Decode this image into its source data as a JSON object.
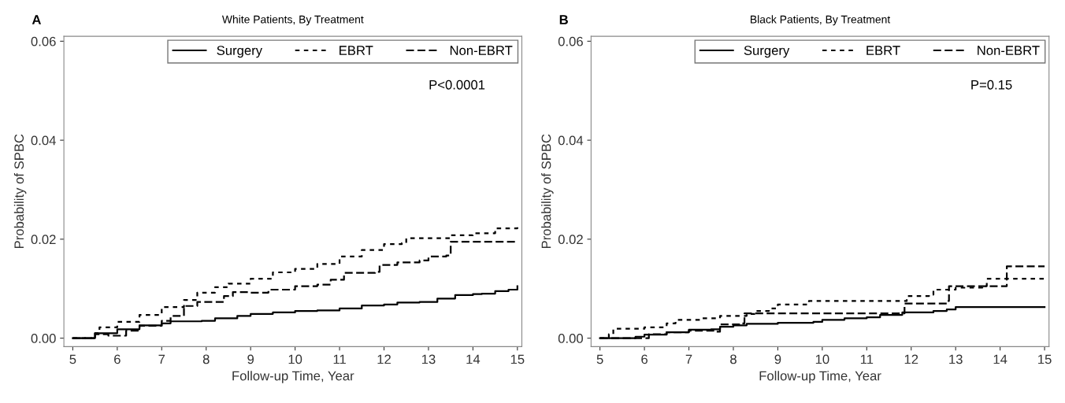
{
  "chart_data": [
    {
      "type": "step",
      "title": "White Patients, By Treatment",
      "xlabel": "Follow-up Time, Year",
      "ylabel": "Probability of SPBC",
      "xlim": [
        4.8,
        15.1
      ],
      "ylim": [
        -0.0017,
        0.061
      ],
      "xticks": [
        5,
        6,
        7,
        8,
        9,
        10,
        11,
        12,
        13,
        14,
        15
      ],
      "yticks": [
        {
          "value": 0,
          "label": "0.00"
        },
        {
          "value": 0.02,
          "label": "0.02"
        },
        {
          "value": 0.04,
          "label": "0.04"
        },
        {
          "value": 0.06,
          "label": "0.06"
        }
      ],
      "grid": false,
      "legend": "top right",
      "annotations": [
        "A",
        "P<0.0001"
      ],
      "series": [
        {
          "name": "Surgery",
          "color": "#000000",
          "line_style": "solid",
          "x": [
            5,
            5.5,
            6,
            6.5,
            7,
            7.2,
            7.9,
            8.2,
            8.7,
            9,
            9.5,
            10,
            10.5,
            11,
            11.5,
            12,
            12.3,
            12.8,
            13.2,
            13.6,
            14,
            14.2,
            14.5,
            14.8,
            15
          ],
          "values": [
            0,
            0.001,
            0.0018,
            0.0026,
            0.003,
            0.0034,
            0.0035,
            0.004,
            0.0045,
            0.0049,
            0.0052,
            0.0055,
            0.0056,
            0.006,
            0.0066,
            0.0068,
            0.0072,
            0.0073,
            0.008,
            0.0087,
            0.0089,
            0.009,
            0.0095,
            0.0098,
            0.0105
          ]
        },
        {
          "name": "EBRT",
          "color": "#000000",
          "line_style": "dotted",
          "x": [
            5,
            5.5,
            5.6,
            6,
            6.5,
            7,
            7.5,
            7.8,
            8.2,
            8.5,
            9,
            9.5,
            10,
            10.5,
            11,
            11.5,
            12,
            12.4,
            12.5,
            13,
            13.5,
            14,
            14.5,
            15
          ],
          "values": [
            0,
            0.001,
            0.0022,
            0.0033,
            0.0047,
            0.0063,
            0.0077,
            0.0092,
            0.0103,
            0.011,
            0.012,
            0.0133,
            0.014,
            0.015,
            0.0165,
            0.0178,
            0.019,
            0.0192,
            0.0202,
            0.0202,
            0.0208,
            0.0212,
            0.0222,
            0.0224
          ]
        },
        {
          "name": "Non-EBRT",
          "color": "#000000",
          "line_style": "dashed",
          "x": [
            5,
            5.5,
            5.8,
            6.2,
            6.5,
            7,
            7.2,
            7.5,
            7.8,
            8.2,
            8.4,
            8.6,
            9,
            9.4,
            10,
            10.5,
            10.8,
            11.1,
            11.8,
            11.9,
            12.3,
            12.8,
            13,
            13.4,
            13.5,
            15
          ],
          "values": [
            0,
            0.0008,
            0.0005,
            0.0015,
            0.0025,
            0.0035,
            0.0045,
            0.0065,
            0.0073,
            0.0073,
            0.0085,
            0.0093,
            0.0092,
            0.0098,
            0.0105,
            0.0108,
            0.0118,
            0.0132,
            0.0134,
            0.0148,
            0.0153,
            0.0157,
            0.0165,
            0.0167,
            0.0195,
            0.0195
          ]
        }
      ]
    },
    {
      "type": "step",
      "title": "Black Patients, By Treatment",
      "xlabel": "Follow-up Time, Year",
      "ylabel": "Probability of SPBC",
      "xlim": [
        4.8,
        15.1
      ],
      "ylim": [
        -0.0017,
        0.061
      ],
      "xticks": [
        5,
        6,
        7,
        8,
        9,
        10,
        11,
        12,
        13,
        14,
        15
      ],
      "yticks": [
        {
          "value": 0,
          "label": "0.00"
        },
        {
          "value": 0.02,
          "label": "0.02"
        },
        {
          "value": 0.04,
          "label": "0.04"
        },
        {
          "value": 0.06,
          "label": "0.06"
        }
      ],
      "grid": false,
      "legend": "top right",
      "annotations": [
        "B",
        "P=0.15"
      ],
      "series": [
        {
          "name": "Surgery",
          "color": "#000000",
          "line_style": "solid",
          "x": [
            5,
            5.8,
            6,
            6.5,
            7,
            7.5,
            7.7,
            8,
            8.3,
            9,
            9.8,
            10,
            10.5,
            11,
            11.3,
            11.8,
            12.5,
            12.8,
            13,
            15
          ],
          "values": [
            0,
            0.0003,
            0.0007,
            0.0012,
            0.0017,
            0.0018,
            0.0023,
            0.0026,
            0.0029,
            0.0031,
            0.0033,
            0.0037,
            0.004,
            0.0042,
            0.0047,
            0.0052,
            0.0055,
            0.0058,
            0.0063,
            0.0063
          ]
        },
        {
          "name": "EBRT",
          "color": "#000000",
          "line_style": "dotted",
          "x": [
            5,
            5.2,
            5.3,
            6,
            6.5,
            6.7,
            7.3,
            7.7,
            8.3,
            8.5,
            8.8,
            9,
            9.7,
            11.8,
            11.9,
            12.4,
            12.5,
            13,
            13.6,
            13.7,
            15
          ],
          "values": [
            0,
            0.0008,
            0.0019,
            0.0022,
            0.003,
            0.0037,
            0.004,
            0.0045,
            0.0049,
            0.0055,
            0.006,
            0.0068,
            0.0075,
            0.0075,
            0.0085,
            0.0088,
            0.0098,
            0.0102,
            0.0105,
            0.012,
            0.012
          ]
        },
        {
          "name": "Non-EBRT",
          "color": "#000000",
          "line_style": "dashed",
          "x": [
            5,
            5.8,
            6.1,
            6.5,
            7,
            7.6,
            7.7,
            8.2,
            8.25,
            11.8,
            11.85,
            12.8,
            12.85,
            14.1,
            14.15,
            15
          ],
          "values": [
            0,
            0,
            0.0008,
            0.0012,
            0.0015,
            0.0013,
            0.0028,
            0.003,
            0.005,
            0.005,
            0.007,
            0.0075,
            0.0105,
            0.0105,
            0.0145,
            0.0145
          ]
        }
      ]
    }
  ]
}
